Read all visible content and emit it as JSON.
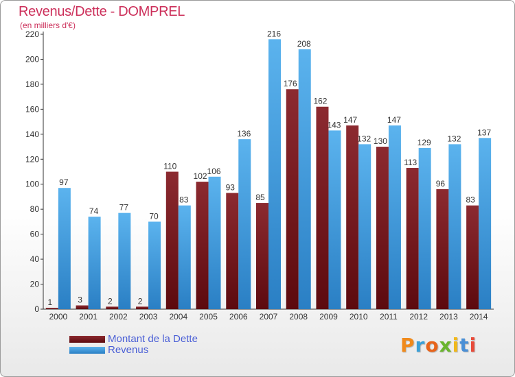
{
  "chart_data": {
    "type": "bar",
    "title": "Revenus/Dette - DOMPREL",
    "subtitle": "(en milliers d'€)",
    "categories": [
      "2000",
      "2001",
      "2002",
      "2003",
      "2004",
      "2005",
      "2006",
      "2007",
      "2008",
      "2009",
      "2010",
      "2011",
      "2012",
      "2013",
      "2014"
    ],
    "series": [
      {
        "name": "Montant de la Dette",
        "color": "#7a1a1f",
        "values": [
          1,
          3,
          2,
          2,
          110,
          102,
          93,
          85,
          176,
          162,
          147,
          130,
          113,
          96,
          83
        ]
      },
      {
        "name": "Revenus",
        "color": "#3f9fe3",
        "values": [
          97,
          74,
          77,
          70,
          83,
          106,
          136,
          216,
          208,
          143,
          132,
          147,
          129,
          132,
          137
        ]
      }
    ],
    "ylim": [
      0,
      220
    ],
    "yticks": [
      0,
      20,
      40,
      60,
      80,
      100,
      120,
      140,
      160,
      180,
      200,
      220
    ],
    "grid": false,
    "legend_position": "bottom-left"
  },
  "brand": {
    "text": "Proxiti",
    "colors": [
      "#f08a1c",
      "#3aa0d8",
      "#e8641b",
      "#6ab52e",
      "#f0b81c",
      "#4a8fd6",
      "#e84b3a"
    ]
  }
}
